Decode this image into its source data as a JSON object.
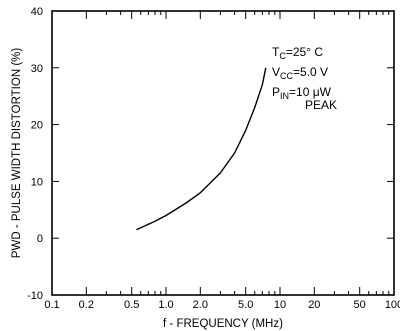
{
  "chart_data": {
    "type": "line",
    "xlabel": "f - FREQUENCY (MHz)",
    "ylabel": "PWD - PULSE WIDTH DISTORTION (%)",
    "x_scale": "log",
    "xlim": [
      0.1,
      100
    ],
    "ylim": [
      -10,
      40
    ],
    "x_ticks": [
      0.1,
      0.2,
      0.5,
      1.0,
      2.0,
      5.0,
      10,
      20,
      50,
      100
    ],
    "x_tick_labels": [
      "0.1",
      "0.2",
      "0.5",
      "1.0",
      "2.0",
      "5.0",
      "10",
      "20",
      "50",
      "100"
    ],
    "y_ticks": [
      -10,
      0,
      10,
      20,
      30,
      40
    ],
    "y_tick_labels": [
      "-10",
      "0",
      "10",
      "20",
      "30",
      "40"
    ],
    "grid": false,
    "series": [
      {
        "x": [
          0.55,
          0.8,
          1.0,
          1.5,
          2.0,
          3.0,
          4.0,
          5.0,
          6.0,
          7.0,
          7.5
        ],
        "y": [
          1.5,
          3.0,
          4.0,
          6.2,
          8.0,
          11.5,
          15.0,
          19.0,
          23.0,
          27.0,
          30.0
        ]
      }
    ],
    "annotations": [
      {
        "main": "T",
        "sub": "C",
        "rest": "=25° C"
      },
      {
        "main": "V",
        "sub": "CC",
        "rest": "=5.0  V"
      },
      {
        "main": "P",
        "sub": "IN",
        "rest": "=10  μW"
      },
      {
        "main": "PEAK",
        "sub": "",
        "rest": ""
      }
    ]
  }
}
